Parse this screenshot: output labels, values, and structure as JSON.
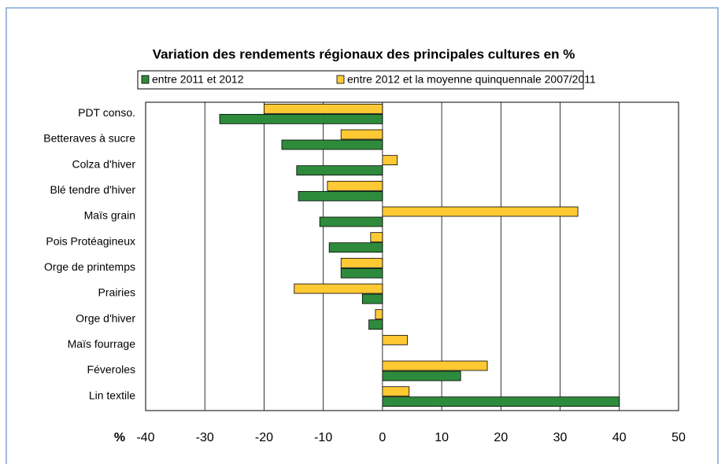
{
  "chart_data": {
    "type": "hbar",
    "title": "Variation des rendements régionaux des principales cultures en %",
    "xlabel": "%",
    "categories": [
      "PDT conso.",
      "Betteraves à sucre",
      "Colza d'hiver",
      "Blé tendre d'hiver",
      "Maïs grain",
      "Pois Protéagineux",
      "Orge de printemps",
      "Prairies",
      "Orge d'hiver",
      "Maïs fourrage",
      "Féveroles",
      "Lin textile"
    ],
    "series": [
      {
        "name": "entre 2011 et 2012",
        "color": "#2e8b3c",
        "values": [
          -27.5,
          -17,
          -14.5,
          -14.2,
          -10.6,
          -9,
          -7,
          -3.4,
          -2.3,
          null,
          13.2,
          40
        ]
      },
      {
        "name": "entre 2012 et la moyenne quinquennale 2007/2011",
        "color": "#ffc933",
        "values": [
          -20,
          -7,
          2.5,
          -9.3,
          33,
          -2,
          -7,
          -14.9,
          -1.2,
          4.2,
          17.7,
          4.5
        ]
      }
    ],
    "xlim": [
      -40,
      50
    ],
    "xticks": [
      -40,
      -30,
      -20,
      -10,
      0,
      10,
      20,
      30,
      40,
      50
    ],
    "grid": true,
    "legend": "top"
  }
}
